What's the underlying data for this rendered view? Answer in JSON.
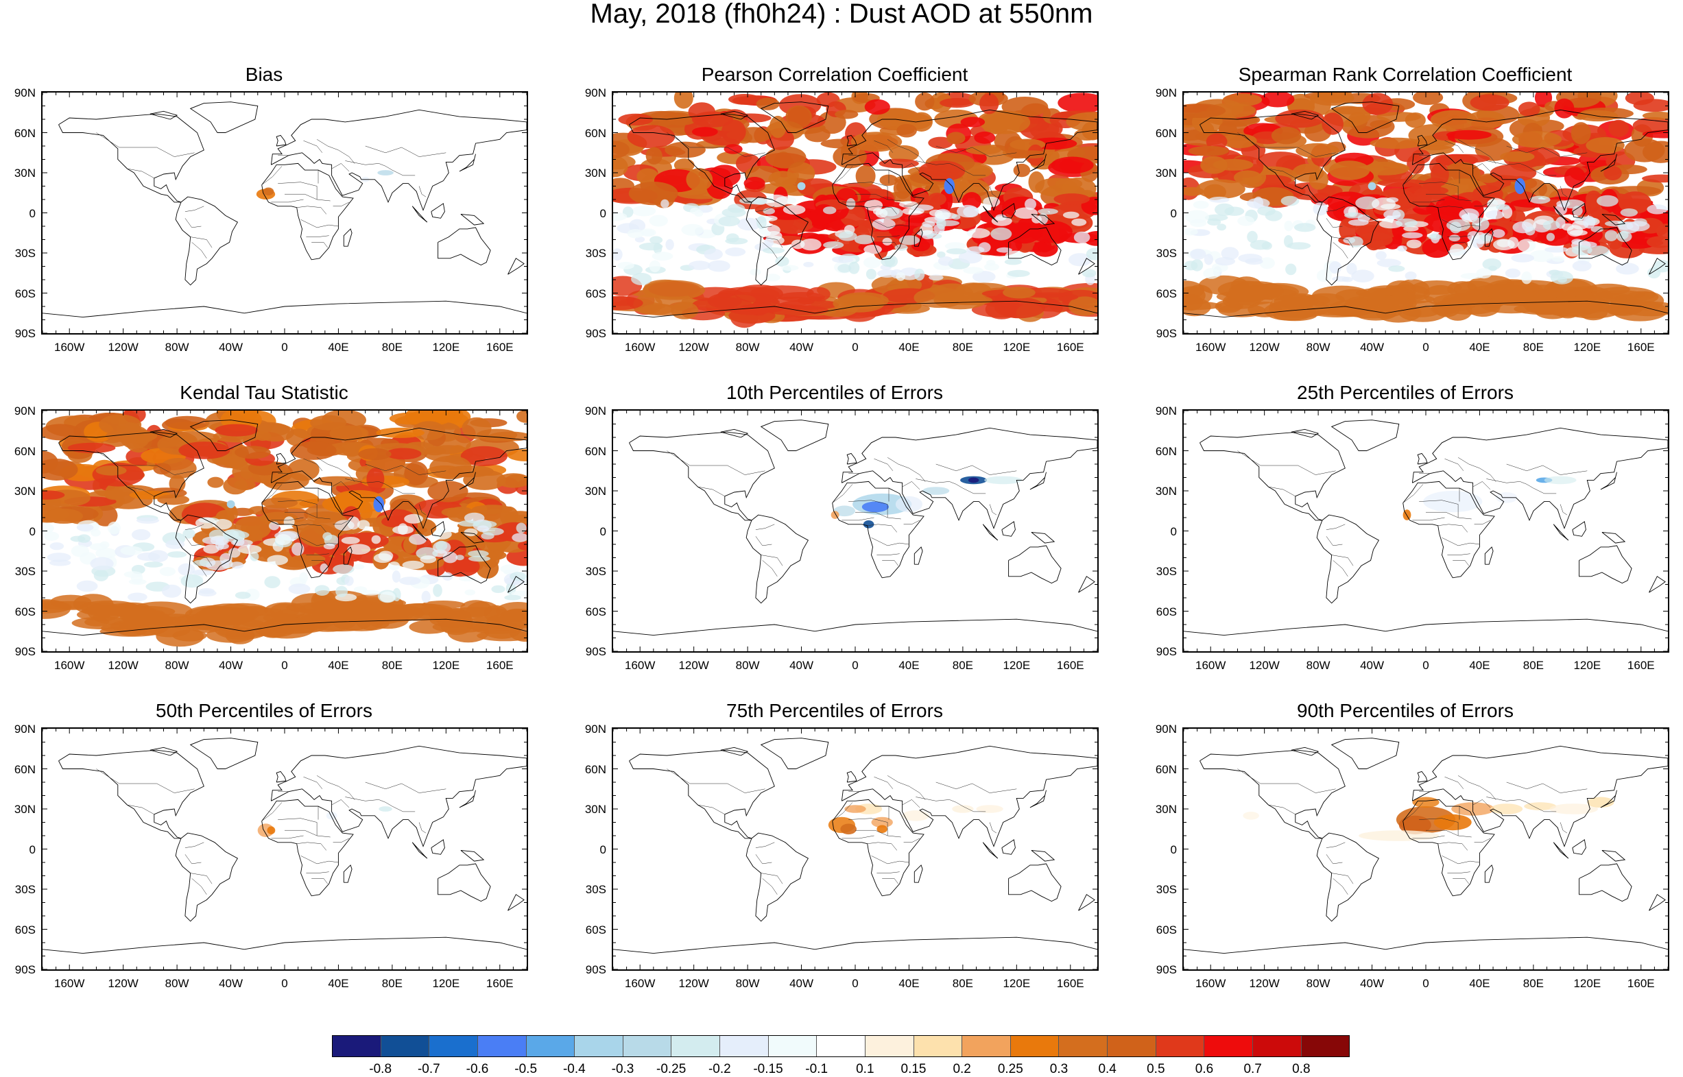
{
  "title": "May, 2018 (fh0h24) : Dust AOD at 550nm",
  "lat_labels": [
    "90N",
    "60N",
    "30N",
    "0",
    "30S",
    "60S",
    "90S"
  ],
  "lon_labels": [
    "160W",
    "120W",
    "80W",
    "40W",
    "0",
    "40E",
    "80E",
    "120E",
    "160E"
  ],
  "panels": [
    {
      "title": "Bias",
      "field": "bias"
    },
    {
      "title": "Pearson Correlation Coefficient",
      "field": "pearson"
    },
    {
      "title": "Spearman Rank Correlation Coefficient",
      "field": "spearman"
    },
    {
      "title": "Kendal Tau Statistic",
      "field": "kendall"
    },
    {
      "title": "10th Percentiles of Errors",
      "field": "p10"
    },
    {
      "title": "25th Percentiles of Errors",
      "field": "p25"
    },
    {
      "title": "50th Percentiles of Errors",
      "field": "p50"
    },
    {
      "title": "75th Percentiles of Errors",
      "field": "p75"
    },
    {
      "title": "90th Percentiles of Errors",
      "field": "p90"
    }
  ],
  "colorbar": {
    "labels": [
      "-0.8",
      "-0.7",
      "-0.6",
      "-0.5",
      "-0.4",
      "-0.3",
      "-0.25",
      "-0.2",
      "-0.15",
      "-0.1",
      "0.1",
      "0.15",
      "0.2",
      "0.25",
      "0.3",
      "0.4",
      "0.5",
      "0.6",
      "0.7",
      "0.8"
    ],
    "colors": [
      "#1a1a7a",
      "#114f96",
      "#1a6fce",
      "#4a7ef5",
      "#5aa8e8",
      "#a9d5ea",
      "#b8dae8",
      "#d3ecef",
      "#e5eefb",
      "#f1fbfc",
      "#ffffff",
      "#fdf1dd",
      "#fde1ad",
      "#f2a35d",
      "#e9790c",
      "#d46e1e",
      "#d0621a",
      "#e0391b",
      "#ee0c0c",
      "#cc0a0a",
      "#870707"
    ]
  }
}
